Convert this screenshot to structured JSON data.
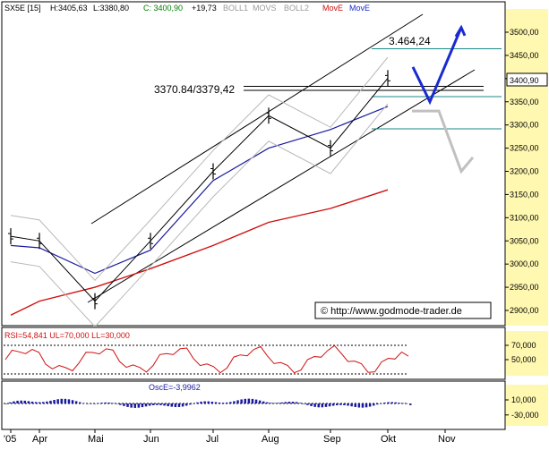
{
  "header": {
    "symbol": "SX5E [15]",
    "high": "H:3405,63",
    "low": "L:3380,80",
    "close": "C: 3400,90",
    "change": "+19,73",
    "ind_boll1": "BOLL1",
    "ind_movs": "MOVS",
    "ind_boll2": "BOLL2",
    "ind_move1": "MovE",
    "ind_move2": "MovE"
  },
  "annotations": {
    "high_label": "3.464,24",
    "range_label": "3370.84/3379,42",
    "last_price": "3400,90",
    "copyright": "© http://www.godmode-trader.de"
  },
  "rsi_label": "RSI=54,841  UL=70,000  LL=30,000",
  "osc_label": "OscE=-3,9962",
  "colors": {
    "background": "#ffffff",
    "price_bar": "#000000",
    "ma_short": "#1a1aa0",
    "ma_long": "#d01010",
    "bollinger": "#b8b8b8",
    "bull_forecast": "#1a2ad0",
    "bear_forecast": "#c0c0c0",
    "channel": "#000000",
    "rsi_line": "#d01010",
    "osc_bars": "#1a1aa0",
    "axis_highlight": "#fff8b0"
  },
  "chart_data": [
    {
      "type": "line",
      "panel": "price",
      "title": "SX5E [15]",
      "x_tick_labels": [
        "'05",
        "Apr",
        "Mai",
        "Jun",
        "Jul",
        "Aug",
        "Sep",
        "Okt",
        "Nov"
      ],
      "y_tick_labels": [
        "2900,00",
        "2950,00",
        "3000,00",
        "3050,00",
        "3100,00",
        "3150,00",
        "3200,00",
        "3250,00",
        "3300,00",
        "3350,00",
        "3400,00",
        "3450,00",
        "3500,00"
      ],
      "ylim": [
        2870,
        3540
      ],
      "grid": false,
      "series": [
        {
          "name": "SX5E",
          "kind": "ohlc",
          "x": [
            "'05",
            "Apr",
            "Mai",
            "Jun",
            "Jul",
            "Aug",
            "Sep",
            "Okt"
          ],
          "values": [
            3060,
            3050,
            2920,
            3050,
            3200,
            3320,
            3250,
            3400.9
          ]
        },
        {
          "name": "MovE",
          "x": [
            "'05",
            "Apr",
            "Mai",
            "Jun",
            "Jul",
            "Aug",
            "Sep",
            "Okt"
          ],
          "values": [
            3040,
            3035,
            2980,
            3030,
            3180,
            3250,
            3290,
            3340
          ]
        },
        {
          "name": "MovE",
          "x": [
            "'05",
            "Apr",
            "Mai",
            "Jun",
            "Jul",
            "Aug",
            "Sep",
            "Okt"
          ],
          "values": [
            2890,
            2920,
            2950,
            2990,
            3040,
            3090,
            3120,
            3160
          ]
        }
      ],
      "annotations": [
        {
          "text": "3.464,24",
          "y": 3464.24
        },
        {
          "text": "3370.84/3379,42",
          "y": [
            3370.84,
            3379.42
          ]
        }
      ],
      "forecast": [
        {
          "name": "bullish",
          "y": [
            3425,
            3350,
            3510
          ]
        },
        {
          "name": "bearish",
          "y": [
            3330,
            3200,
            3230
          ]
        }
      ]
    },
    {
      "type": "line",
      "panel": "rsi",
      "y_tick_labels": [
        "50,000",
        "70,000"
      ],
      "ylim": [
        20,
        80
      ],
      "reference_lines": [
        70,
        30
      ],
      "series": [
        {
          "name": "RSI",
          "last": 54.841
        }
      ]
    },
    {
      "type": "bar",
      "panel": "oscillator",
      "y_tick_labels": [
        "-30,000",
        "10,000"
      ],
      "series": [
        {
          "name": "OscE",
          "last": -3.9962
        }
      ]
    }
  ]
}
